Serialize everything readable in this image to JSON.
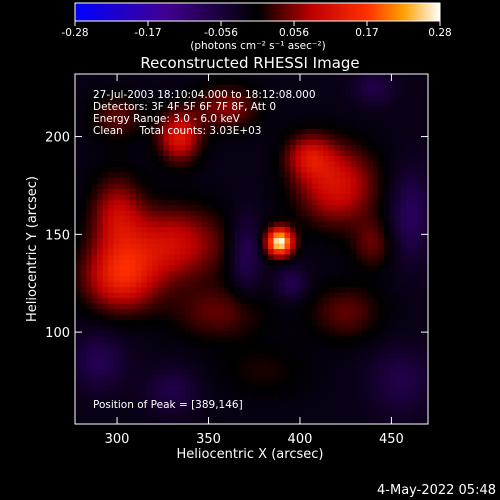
{
  "chart_data": {
    "type": "heatmap",
    "title": "Reconstructed RHESSI Image",
    "xlabel": "Heliocentric X (arcsec)",
    "ylabel": "Heliocentric Y (arcsec)",
    "xlim": [
      277,
      470
    ],
    "ylim": [
      53,
      232
    ],
    "x_ticks": [
      300,
      350,
      400,
      450
    ],
    "y_ticks": [
      100,
      150,
      200
    ],
    "colorbar": {
      "ticks": [
        "-0.28",
        "-0.17",
        "-0.056",
        "0.056",
        "0.17",
        "0.28"
      ],
      "range": [
        -0.28,
        0.28
      ],
      "unit_label": "(photons cm⁻² s⁻¹ asec⁻²)"
    },
    "info_lines": [
      "27-Jul-2003 18:10:04.000 to 18:12:08.000",
      "Detectors: 3F 4F 5F 6F 7F 8F, Att 0",
      "Energy Range: 3.0 - 6.0 keV",
      "Clean     Total counts: 3.03E+03"
    ],
    "peak_label": "Position of Peak = [389,146]",
    "peak": {
      "x": 389,
      "y": 146,
      "value": 0.28
    },
    "sources": [
      {
        "x": 389,
        "y": 146,
        "sx": 5,
        "sy": 5,
        "value": 0.3
      },
      {
        "x": 302,
        "y": 128,
        "sx": 14,
        "sy": 12,
        "value": 0.15
      },
      {
        "x": 330,
        "y": 145,
        "sx": 20,
        "sy": 13,
        "value": 0.12
      },
      {
        "x": 334,
        "y": 200,
        "sx": 8,
        "sy": 9,
        "value": 0.14
      },
      {
        "x": 300,
        "y": 160,
        "sx": 10,
        "sy": 14,
        "value": 0.1
      },
      {
        "x": 420,
        "y": 175,
        "sx": 15,
        "sy": 14,
        "value": 0.13
      },
      {
        "x": 405,
        "y": 190,
        "sx": 9,
        "sy": 8,
        "value": 0.1
      },
      {
        "x": 360,
        "y": 215,
        "sx": 12,
        "sy": 8,
        "value": 0.08
      },
      {
        "x": 300,
        "y": 210,
        "sx": 10,
        "sy": 8,
        "value": 0.06
      },
      {
        "x": 440,
        "y": 145,
        "sx": 8,
        "sy": 9,
        "value": 0.06
      },
      {
        "x": 355,
        "y": 110,
        "sx": 18,
        "sy": 10,
        "value": 0.06
      },
      {
        "x": 425,
        "y": 110,
        "sx": 14,
        "sy": 10,
        "value": 0.06
      },
      {
        "x": 380,
        "y": 80,
        "sx": 18,
        "sy": 10,
        "value": 0.03
      },
      {
        "x": 440,
        "y": 225,
        "sx": 8,
        "sy": 6,
        "value": -0.05
      },
      {
        "x": 370,
        "y": 140,
        "sx": 6,
        "sy": 14,
        "value": -0.07
      },
      {
        "x": 460,
        "y": 160,
        "sx": 8,
        "sy": 16,
        "value": -0.07
      },
      {
        "x": 290,
        "y": 85,
        "sx": 10,
        "sy": 10,
        "value": -0.06
      },
      {
        "x": 330,
        "y": 70,
        "sx": 10,
        "sy": 8,
        "value": -0.05
      },
      {
        "x": 455,
        "y": 75,
        "sx": 12,
        "sy": 12,
        "value": -0.05
      },
      {
        "x": 395,
        "y": 125,
        "sx": 6,
        "sy": 6,
        "value": -0.06
      }
    ]
  },
  "footer": {
    "timestamp": "4-May-2022 05:48"
  }
}
